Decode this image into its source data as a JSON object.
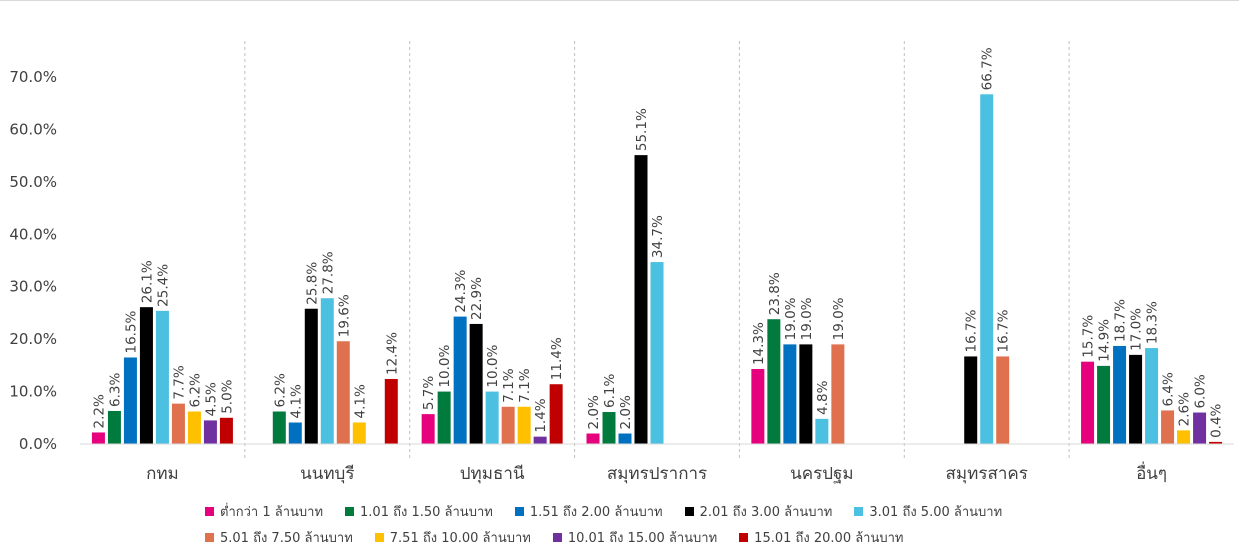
{
  "chart_data": {
    "type": "bar",
    "ylim": [
      0,
      70
    ],
    "yticks": [
      "0.0%",
      "10.0%",
      "20.0%",
      "30.0%",
      "40.0%",
      "50.0%",
      "60.0%",
      "70.0%"
    ],
    "grid": "vertical dashed separators between categories",
    "legend_position": "bottom",
    "categories": [
      "กทม",
      "นนทบุรี",
      "ปทุมธานี",
      "สมุทรปราการ",
      "นครปฐม",
      "สมุทรสาคร",
      "อื่นๆ"
    ],
    "series": [
      {
        "name": "ต่ำกว่า 1 ล้านบาท",
        "color": "#e6007e",
        "values": [
          2.2,
          null,
          5.7,
          2.0,
          14.3,
          null,
          15.7
        ],
        "labels": [
          "2.2%",
          "",
          "5.7%",
          "2.0%",
          "14.3%",
          "",
          "15.7%"
        ]
      },
      {
        "name": "1.01 ถึง 1.50 ล้านบาท",
        "color": "#007a3d",
        "values": [
          6.3,
          6.2,
          10.0,
          6.1,
          23.8,
          null,
          14.9
        ],
        "labels": [
          "6.3%",
          "6.2%",
          "10.0%",
          "6.1%",
          "23.8%",
          "",
          "14.9%"
        ]
      },
      {
        "name": "1.51 ถึง 2.00 ล้านบาท",
        "color": "#0070c0",
        "values": [
          16.5,
          4.1,
          24.3,
          2.0,
          19.0,
          null,
          18.7
        ],
        "labels": [
          "16.5%",
          "4.1%",
          "24.3%",
          "2.0%",
          "19.0%",
          "",
          "18.7%"
        ]
      },
      {
        "name": "2.01 ถึง 3.00 ล้านบาท",
        "color": "#000000",
        "values": [
          26.1,
          25.8,
          22.9,
          55.1,
          19.0,
          16.7,
          17.0
        ],
        "labels": [
          "26.1%",
          "25.8%",
          "22.9%",
          "55.1%",
          "19.0%",
          "16.7%",
          "17.0%"
        ]
      },
      {
        "name": "3.01 ถึง 5.00 ล้านบาท",
        "color": "#4bc0e0",
        "values": [
          25.4,
          27.8,
          10.0,
          34.7,
          4.8,
          66.7,
          18.3
        ],
        "labels": [
          "25.4%",
          "27.8%",
          "10.0%",
          "34.7%",
          "4.8%",
          "66.7%",
          "18.3%"
        ]
      },
      {
        "name": "5.01 ถึง 7.50 ล้านบาท",
        "color": "#e0714f",
        "values": [
          7.7,
          19.6,
          7.1,
          null,
          19.0,
          16.7,
          6.4
        ],
        "labels": [
          "7.7%",
          "19.6%",
          "7.1%",
          "",
          "19.0%",
          "16.7%",
          "6.4%"
        ]
      },
      {
        "name": "7.51 ถึง 10.00 ล้านบาท",
        "color": "#ffc000",
        "values": [
          6.2,
          4.1,
          7.1,
          null,
          null,
          null,
          2.6
        ],
        "labels": [
          "6.2%",
          "4.1%",
          "7.1%",
          "",
          "",
          "",
          "2.6%"
        ]
      },
      {
        "name": "10.01 ถึง 15.00 ล้านบาท",
        "color": "#7030a0",
        "values": [
          4.5,
          null,
          1.4,
          null,
          null,
          null,
          6.0
        ],
        "labels": [
          "4.5%",
          "",
          "1.4%",
          "",
          "",
          "",
          "6.0%"
        ]
      },
      {
        "name": "15.01 ถึง 20.00 ล้านบาท",
        "color": "#c00000",
        "values": [
          5.0,
          12.4,
          11.4,
          null,
          null,
          null,
          0.4
        ],
        "labels": [
          "5.0%",
          "12.4%",
          "11.4%",
          "",
          "",
          "",
          "0.4%"
        ]
      }
    ]
  }
}
